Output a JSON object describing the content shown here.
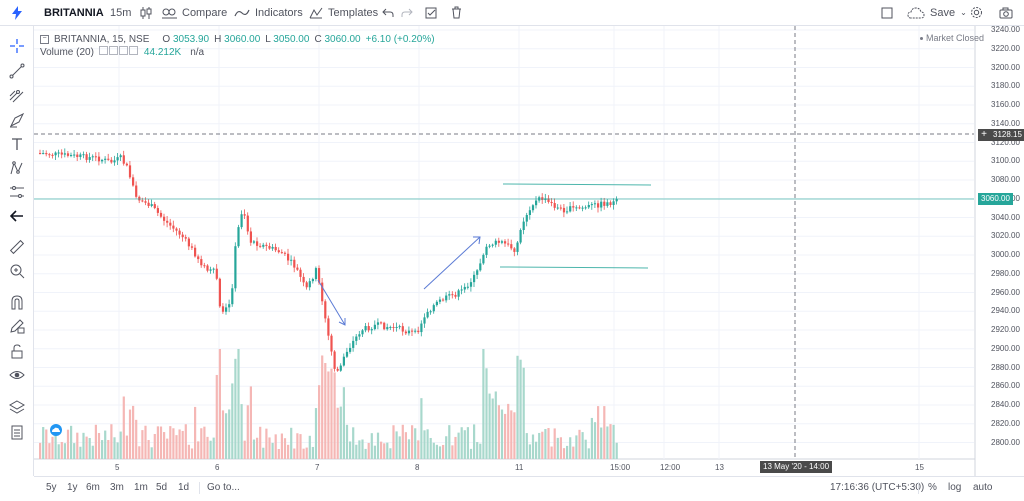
{
  "toolbar": {
    "symbol": "BRITANNIA",
    "interval": "15m",
    "compare": "Compare",
    "indicators": "Indicators",
    "templates": "Templates",
    "save": "Save"
  },
  "legend": {
    "title": "BRITANNIA, 15, NSE",
    "o_label": "O",
    "o_val": "3053.90",
    "h_label": "H",
    "h_val": "3060.00",
    "l_label": "L",
    "l_val": "3050.00",
    "c_label": "C",
    "c_val": "3060.00",
    "change": "+6.10 (+0.20%)",
    "volume_label": "Volume (20)",
    "volume_val": "44.212K",
    "volume_ma": "n/a"
  },
  "market_status": "Market Closed",
  "price_axis": [
    "3240.00",
    "3220.00",
    "3200.00",
    "3180.00",
    "3160.00",
    "3140.00",
    "3120.00",
    "3100.00",
    "3080.00",
    "3060.00",
    "3040.00",
    "3020.00",
    "3000.00",
    "2980.00",
    "2960.00",
    "2940.00",
    "2920.00",
    "2900.00",
    "2880.00",
    "2860.00",
    "2840.00",
    "2820.00",
    "2800.00"
  ],
  "crosshair_price": "3128.15",
  "last_price": "3060.00",
  "time_axis": [
    "5",
    "6",
    "7",
    "8",
    "11",
    "15:00",
    "12:00",
    "13",
    "15"
  ],
  "crosshair_time": "13 May '20 - 14:00",
  "bottom": {
    "ranges": [
      "5y",
      "1y",
      "6m",
      "3m",
      "1m",
      "5d",
      "1d"
    ],
    "goto": "Go to...",
    "clock": "17:16:36 (UTC+5:30)",
    "pct": "%",
    "log": "log",
    "auto": "auto"
  },
  "colors": {
    "up": "#26a69a",
    "down": "#ef5350",
    "up_vol": "#a8d8cc",
    "down_vol": "#f5b7b5",
    "accent": "#2962ff"
  }
}
